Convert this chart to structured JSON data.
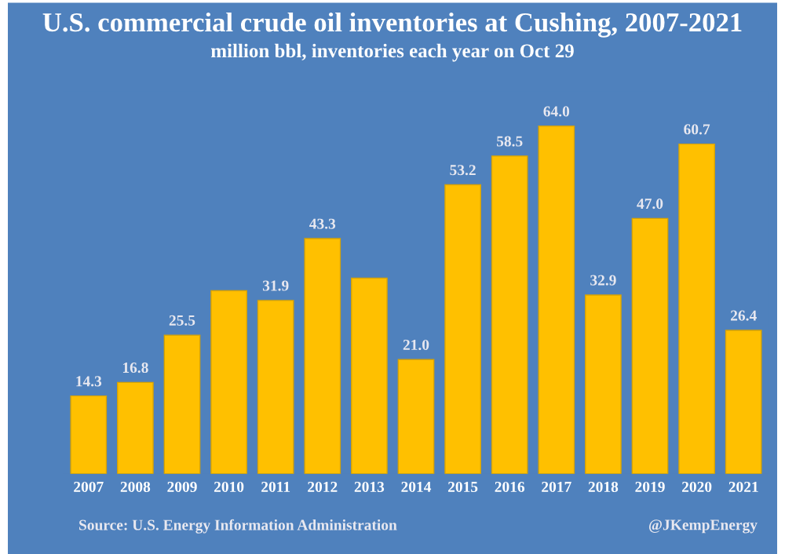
{
  "chart_data": {
    "type": "bar",
    "title": "U.S. commercial crude oil inventories at Cushing, 2007-2021",
    "subtitle": "million bbl, inventories each year on Oct 29",
    "categories": [
      "2007",
      "2008",
      "2009",
      "2010",
      "2011",
      "2012",
      "2013",
      "2014",
      "2015",
      "2016",
      "2017",
      "2018",
      "2019",
      "2020",
      "2021"
    ],
    "values": [
      14.3,
      16.8,
      25.5,
      33.7,
      31.9,
      43.3,
      36.0,
      21.0,
      53.2,
      58.5,
      64.0,
      32.9,
      47.0,
      60.7,
      26.4
    ],
    "value_labels": [
      "14.3",
      "16.8",
      "25.5",
      null,
      "31.9",
      "43.3",
      null,
      "21.0",
      "53.2",
      "58.5",
      "64.0",
      "32.9",
      "47.0",
      "60.7",
      "26.4"
    ],
    "color": "#ffc000",
    "annotations": [
      "Source: U.S. Energy Information Administration",
      "@JKempEnergy"
    ],
    "grid": false,
    "legend": false
  }
}
